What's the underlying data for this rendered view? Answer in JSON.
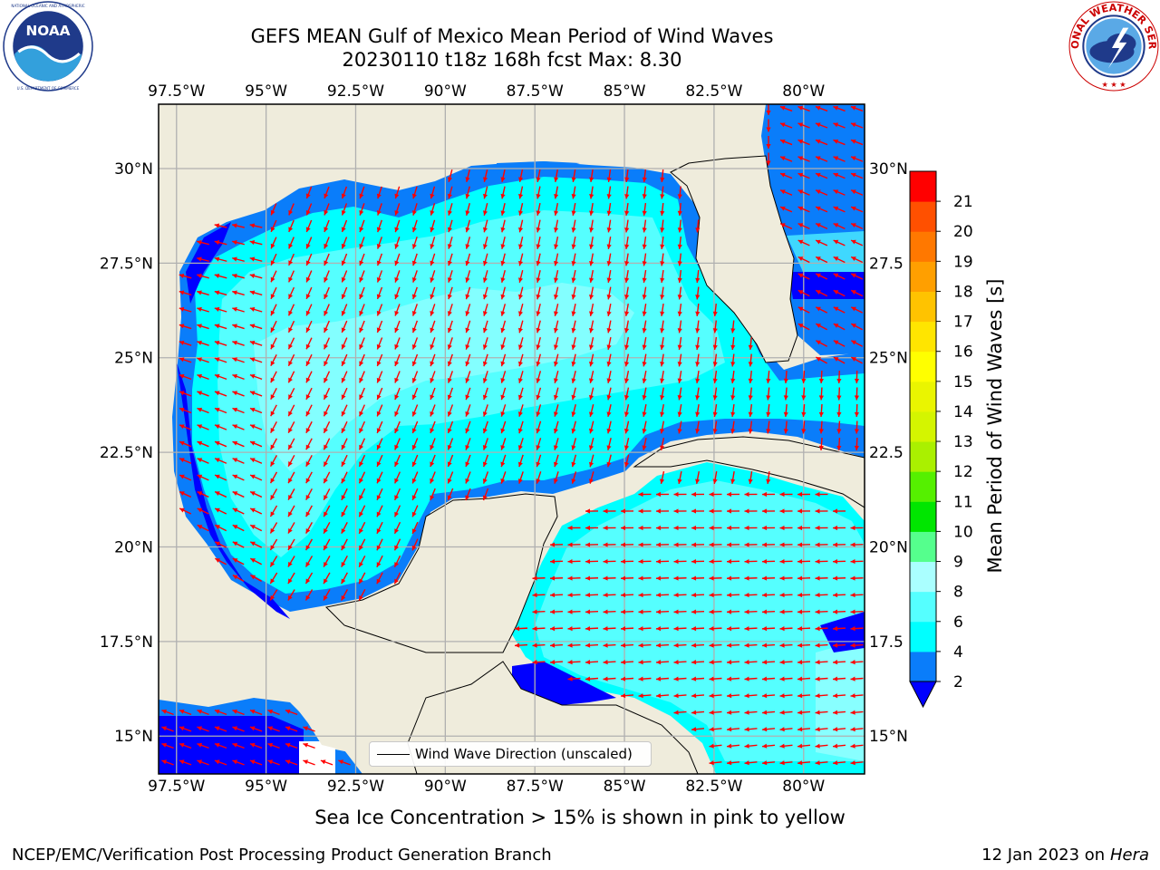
{
  "header": {
    "title_line1": "GEFS MEAN Gulf of Mexico Mean Period of Wind Waves",
    "title_line2": "20230110 t18z 168h fcst   Max: 8.30"
  },
  "logos": {
    "left": {
      "icon": "noaa-logo",
      "text": "NOAA",
      "ring_text": "NATIONAL OCEANIC AND ATMOSPHERIC ADMINISTRATION · U.S. DEPARTMENT OF COMMERCE"
    },
    "right": {
      "icon": "nws-logo",
      "ring_text": "NATIONAL WEATHER SERVICE"
    }
  },
  "map": {
    "lon_ticks": [
      "97.5°W",
      "95°W",
      "92.5°W",
      "90°W",
      "87.5°W",
      "85°W",
      "82.5°W",
      "80°W"
    ],
    "lat_ticks_left": [
      "30°N",
      "27.5°N",
      "25°N",
      "22.5°N",
      "20°N",
      "17.5°N",
      "15°N"
    ],
    "lat_ticks_right": [
      "30°N",
      "27.5",
      "25°N",
      "22.5",
      "20°N",
      "17.5",
      "15°N"
    ],
    "lon_range": [
      -98,
      -78.3
    ],
    "lat_range": [
      14,
      31.7
    ],
    "grid": true,
    "land_color": "#efecdc",
    "arrow_color": "#ff0000",
    "legend": {
      "line_label": "Wind Wave Direction (unscaled)",
      "placement": "bottom-center"
    }
  },
  "colorbar": {
    "label": "Mean Period of Wind Waves [s]",
    "ticks": [
      "2",
      "4",
      "6",
      "8",
      "9",
      "10",
      "11",
      "12",
      "13",
      "14",
      "15",
      "16",
      "17",
      "18",
      "19",
      "20",
      "21"
    ],
    "under_color": "#0000ff",
    "colors": [
      "#0a7dfa",
      "#00ffff",
      "#55ffff",
      "#aaffff",
      "#55ff8d",
      "#00e600",
      "#55f000",
      "#aaf000",
      "#d4f500",
      "#eaf500",
      "#ffff00",
      "#ffe500",
      "#ffc300",
      "#ff9f00",
      "#ff7800",
      "#ff5000",
      "#ff0000"
    ]
  },
  "caption": "Sea Ice Concentration > 15% is shown in pink to yellow",
  "footer": {
    "left": "NCEP/EMC/Verification Post Processing Product Generation Branch",
    "right_text": "12 Jan 2023 on",
    "right_host": "Hera"
  }
}
